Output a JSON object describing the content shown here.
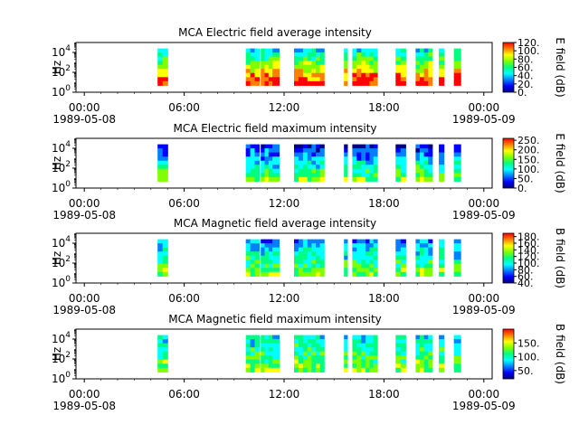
{
  "figure": {
    "bg": "#ffffff"
  },
  "colormap": [
    "#000080",
    "#0000ff",
    "#0080ff",
    "#00ffff",
    "#00ff80",
    "#80ff00",
    "#ffff00",
    "#ff8000",
    "#ff0000"
  ],
  "time_axis": {
    "start": "1989-05-08T00:00",
    "ticks": [
      {
        "hour": 0,
        "label": "00:00",
        "date": "1989-05-08"
      },
      {
        "hour": 6,
        "label": "06:00",
        "date": ""
      },
      {
        "hour": 12,
        "label": "12:00",
        "date": ""
      },
      {
        "hour": 18,
        "label": "18:00",
        "date": ""
      },
      {
        "hour": 24,
        "label": "00:00",
        "date": "1989-05-09"
      }
    ]
  },
  "chart_data": [
    {
      "type": "heatmap",
      "title": "MCA  Electric field average intensity",
      "ylabel": "Hz",
      "yscale": "log",
      "ylim": [
        1,
        100000
      ],
      "yticks": [
        {
          "exp": "0"
        },
        {
          "exp": "2"
        },
        {
          "exp": "4"
        }
      ],
      "xlim_hours": [
        -0.5,
        24.5
      ],
      "colorbar": {
        "label": "E field (dB)",
        "range": [
          0,
          120
        ],
        "ticks": [
          "0.",
          "20.",
          "40.",
          "60.",
          "80.",
          "100.",
          "120."
        ]
      },
      "data_intervals_hours": [
        [
          4.4,
          5.0
        ],
        [
          9.7,
          10.5
        ],
        [
          10.6,
          11.3
        ],
        [
          11.3,
          11.7
        ],
        [
          12.6,
          13.4
        ],
        [
          13.4,
          14.4
        ],
        [
          15.6,
          15.8
        ],
        [
          16.1,
          16.9
        ],
        [
          16.9,
          17.6
        ],
        [
          18.7,
          19.3
        ],
        [
          19.9,
          20.9
        ],
        [
          21.3,
          21.6
        ],
        [
          22.2,
          22.6
        ]
      ],
      "level_range": [
        3,
        8
      ]
    },
    {
      "type": "heatmap",
      "title": "MCA  Electric field maximum intensity",
      "ylabel": "Hz",
      "yscale": "log",
      "ylim": [
        1,
        100000
      ],
      "yticks": [
        {
          "exp": "0"
        },
        {
          "exp": "2"
        },
        {
          "exp": "4"
        }
      ],
      "xlim_hours": [
        -0.5,
        24.5
      ],
      "colorbar": {
        "label": "E field (dB)",
        "range": [
          0,
          260
        ],
        "ticks": [
          "0.",
          "50.",
          "100.",
          "150.",
          "200.",
          "250."
        ]
      },
      "data_intervals_hours": [
        [
          4.4,
          5.0
        ],
        [
          9.7,
          10.5
        ],
        [
          10.6,
          11.3
        ],
        [
          11.3,
          11.7
        ],
        [
          12.6,
          13.4
        ],
        [
          13.4,
          14.4
        ],
        [
          15.6,
          15.8
        ],
        [
          16.1,
          16.9
        ],
        [
          16.9,
          17.6
        ],
        [
          18.7,
          19.3
        ],
        [
          19.9,
          20.9
        ],
        [
          21.3,
          21.6
        ],
        [
          22.2,
          22.6
        ]
      ],
      "level_range": [
        1,
        5
      ]
    },
    {
      "type": "heatmap",
      "title": "MCA  Magnetic field average intensity",
      "ylabel": "Hz",
      "yscale": "log",
      "ylim": [
        1,
        100000
      ],
      "yticks": [
        {
          "exp": "0"
        },
        {
          "exp": "2"
        },
        {
          "exp": "4"
        }
      ],
      "xlim_hours": [
        -0.5,
        24.5
      ],
      "colorbar": {
        "label": "B field (dB)",
        "range": [
          40,
          190
        ],
        "ticks": [
          "40.",
          "60.",
          "80.",
          "100.",
          "120.",
          "140.",
          "160.",
          "180."
        ]
      },
      "data_intervals_hours": [
        [
          4.4,
          5.0
        ],
        [
          9.7,
          10.5
        ],
        [
          10.6,
          11.3
        ],
        [
          11.3,
          11.7
        ],
        [
          12.6,
          13.4
        ],
        [
          13.4,
          14.4
        ],
        [
          15.6,
          15.8
        ],
        [
          16.1,
          16.9
        ],
        [
          16.9,
          17.6
        ],
        [
          18.7,
          19.3
        ],
        [
          19.9,
          20.9
        ],
        [
          21.3,
          21.6
        ],
        [
          22.2,
          22.6
        ]
      ],
      "level_range": [
        2,
        5
      ]
    },
    {
      "type": "heatmap",
      "title": "MCA  Magnetic field maximum intensity",
      "ylabel": "Hz",
      "yscale": "log",
      "ylim": [
        1,
        100000
      ],
      "yticks": [
        {
          "exp": "0"
        },
        {
          "exp": "2"
        },
        {
          "exp": "4"
        }
      ],
      "xlim_hours": [
        -0.5,
        24.5
      ],
      "colorbar": {
        "label": "B field (dB)",
        "range": [
          20,
          200
        ],
        "ticks": [
          "50.",
          "100.",
          "150."
        ]
      },
      "data_intervals_hours": [
        [
          4.4,
          5.0
        ],
        [
          9.7,
          10.5
        ],
        [
          10.6,
          11.3
        ],
        [
          11.3,
          11.7
        ],
        [
          12.6,
          13.4
        ],
        [
          13.4,
          14.4
        ],
        [
          15.6,
          15.8
        ],
        [
          16.1,
          16.9
        ],
        [
          16.9,
          17.6
        ],
        [
          18.7,
          19.3
        ],
        [
          19.9,
          20.9
        ],
        [
          21.3,
          21.6
        ],
        [
          22.2,
          22.6
        ]
      ],
      "level_range": [
        3,
        5
      ]
    }
  ]
}
